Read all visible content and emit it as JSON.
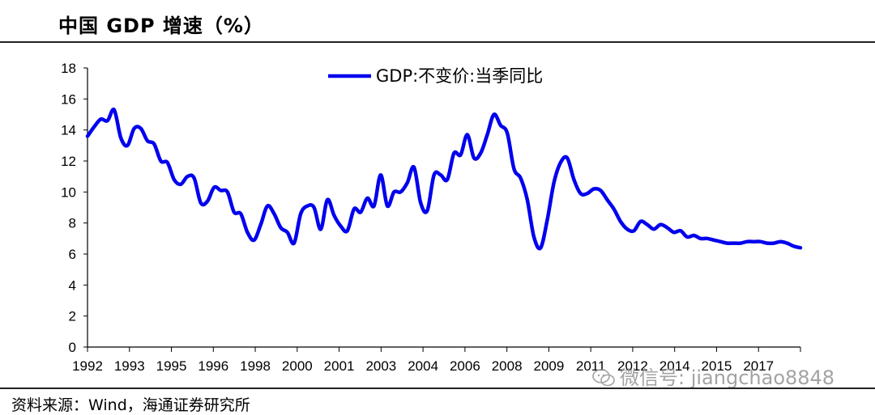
{
  "header": {
    "title": "中国 GDP 增速（%）"
  },
  "footer": {
    "source": "资料来源：Wind，海通证券研究所"
  },
  "watermark": {
    "text": "微信号: jiangchao8848",
    "icon": "wechat-icon"
  },
  "colors": {
    "series": "#0000ee",
    "axis": "#000000"
  },
  "chart_data": {
    "type": "line",
    "title": "中国 GDP 增速（%）",
    "xlabel": "",
    "ylabel": "",
    "ylim": [
      0,
      18
    ],
    "yticks": [
      0,
      2,
      4,
      6,
      8,
      10,
      12,
      14,
      16,
      18
    ],
    "xlim": [
      1992.0,
      2018.75
    ],
    "xtick_labels": [
      "1992",
      "1993",
      "1995",
      "1996",
      "1998",
      "2000",
      "2001",
      "2003",
      "2004",
      "2006",
      "2008",
      "2009",
      "2011",
      "2012",
      "2014",
      "2015",
      "2017"
    ],
    "legend_position": "top-center",
    "series": [
      {
        "name": "GDP:不变价:当季同比",
        "x": [
          1992.0,
          1992.25,
          1992.5,
          1992.75,
          1993.0,
          1993.25,
          1993.5,
          1993.75,
          1994.0,
          1994.25,
          1994.5,
          1994.75,
          1995.0,
          1995.25,
          1995.5,
          1995.75,
          1996.0,
          1996.25,
          1996.5,
          1996.75,
          1997.0,
          1997.25,
          1997.5,
          1997.75,
          1998.0,
          1998.25,
          1998.5,
          1998.75,
          1999.0,
          1999.25,
          1999.5,
          1999.75,
          2000.0,
          2000.25,
          2000.5,
          2000.75,
          2001.0,
          2001.25,
          2001.5,
          2001.75,
          2002.0,
          2002.25,
          2002.5,
          2002.75,
          2003.0,
          2003.25,
          2003.5,
          2003.75,
          2004.0,
          2004.25,
          2004.5,
          2004.75,
          2005.0,
          2005.25,
          2005.5,
          2005.75,
          2006.0,
          2006.25,
          2006.5,
          2006.75,
          2007.0,
          2007.25,
          2007.5,
          2007.75,
          2008.0,
          2008.25,
          2008.5,
          2008.75,
          2009.0,
          2009.25,
          2009.5,
          2009.75,
          2010.0,
          2010.25,
          2010.5,
          2010.75,
          2011.0,
          2011.25,
          2011.5,
          2011.75,
          2012.0,
          2012.25,
          2012.5,
          2012.75,
          2013.0,
          2013.25,
          2013.5,
          2013.75,
          2014.0,
          2014.25,
          2014.5,
          2014.75,
          2015.0,
          2015.25,
          2015.5,
          2015.75,
          2016.0,
          2016.25,
          2016.5,
          2016.75,
          2017.0,
          2017.25,
          2017.5,
          2017.75,
          2018.0,
          2018.25,
          2018.5,
          2018.75
        ],
        "values": [
          13.6,
          14.2,
          14.7,
          14.6,
          15.3,
          13.5,
          13.0,
          14.1,
          14.1,
          13.3,
          13.1,
          12.0,
          11.9,
          10.8,
          10.5,
          11.0,
          10.9,
          9.3,
          9.4,
          10.3,
          10.1,
          10.0,
          8.7,
          8.6,
          7.4,
          6.9,
          7.9,
          9.1,
          8.6,
          7.7,
          7.4,
          6.7,
          8.6,
          9.1,
          9.0,
          7.6,
          9.5,
          8.5,
          7.8,
          7.5,
          8.9,
          8.7,
          9.6,
          9.1,
          11.1,
          9.1,
          10.0,
          10.0,
          10.6,
          11.6,
          9.3,
          8.8,
          11.1,
          11.1,
          10.8,
          12.5,
          12.4,
          13.7,
          12.2,
          12.5,
          13.7,
          15.0,
          14.3,
          13.8,
          11.5,
          10.9,
          9.5,
          7.1,
          6.4,
          8.2,
          10.6,
          11.9,
          12.2,
          10.8,
          9.9,
          9.9,
          10.2,
          10.1,
          9.5,
          8.9,
          8.1,
          7.6,
          7.5,
          8.1,
          7.9,
          7.6,
          7.9,
          7.7,
          7.4,
          7.5,
          7.1,
          7.2,
          7.0,
          7.0,
          6.9,
          6.8,
          6.7,
          6.7,
          6.7,
          6.8,
          6.8,
          6.8,
          6.7,
          6.7,
          6.8,
          6.7,
          6.5,
          6.4
        ]
      }
    ]
  }
}
